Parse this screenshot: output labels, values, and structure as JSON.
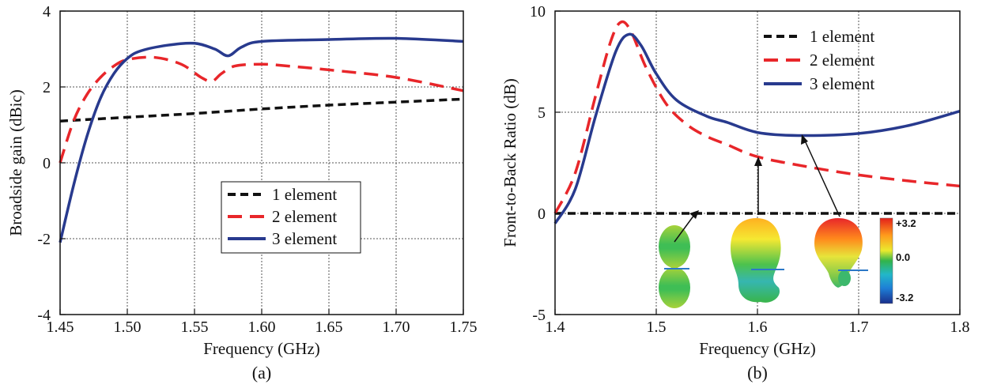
{
  "chart_data": [
    {
      "type": "line",
      "caption": "(a)",
      "xlabel": "Frequency (GHz)",
      "ylabel": "Broadside gain (dBic)",
      "xlim": [
        1.45,
        1.75
      ],
      "ylim": [
        -4,
        4
      ],
      "xticks": [
        "1.45",
        "1.50",
        "1.55",
        "1.60",
        "1.65",
        "1.70",
        "1.75"
      ],
      "yticks": [
        "-4",
        "-2",
        "0",
        "2",
        "4"
      ],
      "grid": true,
      "legend_position": "center-right",
      "series": [
        {
          "name": "1 element",
          "color": "#111111",
          "dash": "10,6",
          "x": [
            1.45,
            1.5,
            1.55,
            1.6,
            1.65,
            1.7,
            1.75
          ],
          "y": [
            1.1,
            1.2,
            1.3,
            1.42,
            1.52,
            1.6,
            1.68
          ]
        },
        {
          "name": "2 element",
          "color": "#e8262a",
          "dash": "18,10",
          "x": [
            1.45,
            1.46,
            1.47,
            1.48,
            1.49,
            1.5,
            1.52,
            1.54,
            1.555,
            1.563,
            1.57,
            1.58,
            1.6,
            1.62,
            1.65,
            1.7,
            1.75
          ],
          "y": [
            0.0,
            1.1,
            1.8,
            2.25,
            2.55,
            2.72,
            2.78,
            2.6,
            2.25,
            2.15,
            2.35,
            2.55,
            2.6,
            2.55,
            2.45,
            2.25,
            1.9
          ]
        },
        {
          "name": "3 element",
          "color": "#283a8e",
          "dash": "",
          "x": [
            1.45,
            1.46,
            1.47,
            1.48,
            1.49,
            1.5,
            1.51,
            1.53,
            1.55,
            1.565,
            1.575,
            1.585,
            1.6,
            1.65,
            1.7,
            1.75
          ],
          "y": [
            -2.1,
            -0.6,
            0.7,
            1.7,
            2.35,
            2.75,
            2.95,
            3.1,
            3.15,
            3.0,
            2.82,
            3.05,
            3.2,
            3.25,
            3.28,
            3.2
          ]
        }
      ]
    },
    {
      "type": "line",
      "caption": "(b)",
      "xlabel": "Frequency (GHz)",
      "ylabel": "Front-to-Back Ratio (dB)",
      "xlim": [
        1.4,
        1.8
      ],
      "ylim": [
        -5,
        10
      ],
      "xticks": [
        "1.4",
        "1.5",
        "1.6",
        "1.7",
        "1.8"
      ],
      "yticks": [
        "-5",
        "0",
        "5",
        "10"
      ],
      "grid": true,
      "legend_position": "top-right",
      "colorbar_labels": [
        "+3.2",
        "0.0",
        "-3.2"
      ],
      "series": [
        {
          "name": "1 element",
          "color": "#111111",
          "dash": "10,6",
          "x": [
            1.4,
            1.5,
            1.6,
            1.7,
            1.8
          ],
          "y": [
            0.0,
            0.0,
            0.0,
            0.0,
            0.0
          ]
        },
        {
          "name": "2 element",
          "color": "#e8262a",
          "dash": "18,10",
          "x": [
            1.4,
            1.42,
            1.44,
            1.455,
            1.465,
            1.475,
            1.49,
            1.51,
            1.53,
            1.55,
            1.57,
            1.6,
            1.65,
            1.7,
            1.75,
            1.8
          ],
          "y": [
            0.0,
            2.0,
            5.8,
            8.5,
            9.45,
            9.0,
            7.2,
            5.4,
            4.4,
            3.8,
            3.4,
            2.8,
            2.3,
            1.9,
            1.6,
            1.35
          ]
        },
        {
          "name": "3 element",
          "color": "#283a8e",
          "dash": "",
          "x": [
            1.4,
            1.42,
            1.44,
            1.46,
            1.473,
            1.485,
            1.5,
            1.52,
            1.55,
            1.57,
            1.6,
            1.64,
            1.7,
            1.75,
            1.8
          ],
          "y": [
            -0.5,
            1.2,
            4.8,
            8.0,
            8.85,
            8.3,
            6.9,
            5.6,
            4.8,
            4.5,
            4.0,
            3.85,
            3.95,
            4.35,
            5.05
          ]
        }
      ]
    }
  ]
}
